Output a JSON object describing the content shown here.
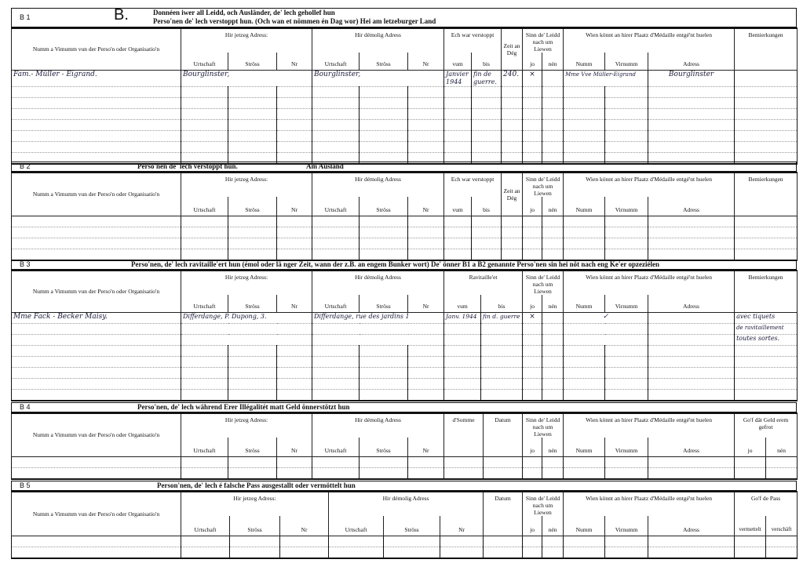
{
  "b1": {
    "code": "B 1",
    "letter": "B.",
    "title_line1": "Donnéen iwer all Leidd, och Ausländer, de' lech gehollef hun",
    "title_line2": "Perso'nen de' lech verstoppt hun. (Och wan et nömmen én Dag wor)    Hei am letzeburger Land",
    "rows": [
      {
        "name": "Fam.- Müller - Eigrand.",
        "cur_urtschaft": "Bourglinster,",
        "old_urtschaft": "Bourglinster,",
        "vum": "Janvier 1944",
        "bis": "fin de guerre.",
        "zeit": "240.",
        "jo": "×",
        "numm": "Mme Vve Müller-Eigrand",
        "adress": "Bourglinster"
      }
    ]
  },
  "b2": {
    "code": "B 2",
    "title": "Perso'nen de' lech verstoppt hun.",
    "title2": "Am Ausland"
  },
  "b3": {
    "code": "B 3",
    "title": "Perso'nen, de' lech ravitaille'ert hun (émol oder lä nger Zeit, wann der z.B. an engem Bunker wort)   De' önner B1 a B2 genannte Perso'nen sin hei nöt nach eng Ke'er opzeziélen",
    "rows": [
      {
        "name": "Mme Fack - Becker Maisy.",
        "cur_urtschaft": "Differdange, P. Dupong, 3.",
        "old_urtschaft": "Differdange, rue des jardins 1",
        "vum": "Janv. 1944",
        "bis": "fin d. guerre",
        "jo": "×",
        "numm": "✓",
        "bem1": "avec tiquets",
        "bem2": "de ravitaillement",
        "bem3": "toutes sortes."
      }
    ]
  },
  "b4": {
    "code": "B 4",
    "title": "Perso'nen, de' lech während Erer Illégalitét matt Geld önnerstötzt hun"
  },
  "b5": {
    "code": "B 5",
    "title": "Person'nen, de' lech é falsche Pass ausgestallt oder vermöttelt hun"
  },
  "headers": {
    "name": "Numm a Vimumm vun der Perso'n oder Organisatio'n",
    "cur_addr": "Hir jetzeg Adress:",
    "old_addr": "Hir démolig Adress",
    "urtschaft": "Urtschaft",
    "stross": "Ströss",
    "nr": "Nr",
    "verstoppt": "Ech war verstoppt",
    "ravitailleet": "Ravitaille'et",
    "vum": "vum",
    "bis": "bis",
    "zeit": "Zeit an Dég",
    "sinn": "Sinn de' Leidd nach um Liewen",
    "jo": "jo",
    "nen": "nén",
    "wien": "Wien könnt an hirer Plaatz d'Médaille entgé'nt huelen",
    "numm": "Numm",
    "virnumm": "Virnumm",
    "adress": "Adress",
    "bemierkungen": "Bemierkungen",
    "somme": "d'Somme",
    "datum": "Datum",
    "gof_geld": "Go'f dât Geld erem gefrot",
    "gof_pass": "Go'f de Pass",
    "vermettelt": "vermettelt",
    "verschaft": "verschäft"
  }
}
